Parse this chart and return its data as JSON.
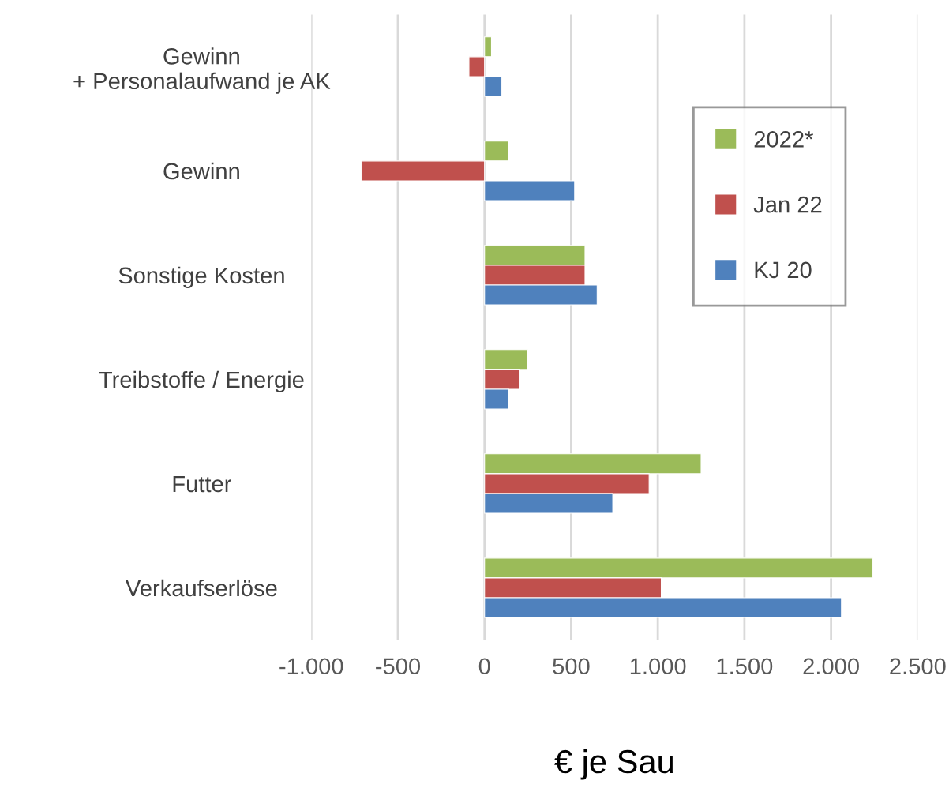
{
  "chart_data": {
    "type": "bar",
    "orientation": "horizontal",
    "categories": [
      "Gewinn\n+ Personalaufwand je AK",
      "Gewinn",
      "Sonstige Kosten",
      "Treibstoffe / Energie",
      "Futter",
      "Verkaufserlöse"
    ],
    "series": [
      {
        "name": "2022*",
        "color": "#9bbb59",
        "values": [
          40,
          140,
          580,
          250,
          1250,
          2240
        ]
      },
      {
        "name": "Jan 22",
        "color": "#c0504d",
        "values": [
          -90,
          -710,
          580,
          200,
          950,
          1020
        ]
      },
      {
        "name": "KJ 20",
        "color": "#4f81bd",
        "values": [
          100,
          520,
          650,
          140,
          740,
          2060
        ]
      }
    ],
    "xlim": [
      -1000,
      2500
    ],
    "xticks": [
      {
        "value": -1000,
        "label": "-1.000"
      },
      -500,
      0,
      500,
      {
        "value": 1000,
        "label": "1.000"
      },
      {
        "value": 1500,
        "label": "1.500"
      },
      {
        "value": 2000,
        "label": "2.000"
      },
      {
        "value": 2500,
        "label": "2.500"
      }
    ],
    "xlabel": "€ je Sau",
    "grid": "x",
    "legend": "top right"
  }
}
